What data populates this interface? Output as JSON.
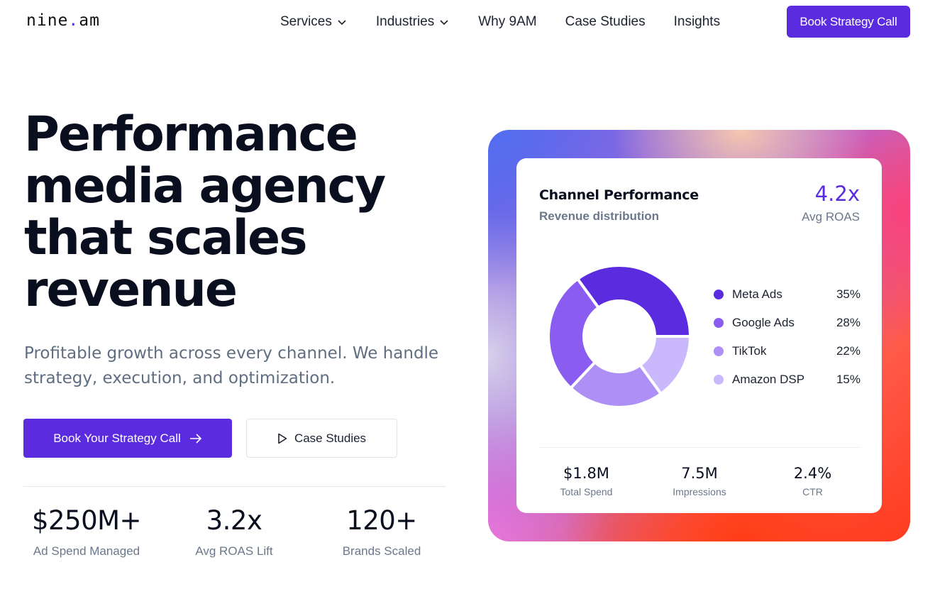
{
  "brand": {
    "name_a": "nine",
    "dot": ".",
    "name_b": "am"
  },
  "nav": {
    "items": [
      {
        "label": "Services",
        "has_dropdown": true
      },
      {
        "label": "Industries",
        "has_dropdown": true
      },
      {
        "label": "Why 9AM",
        "has_dropdown": false
      },
      {
        "label": "Case Studies",
        "has_dropdown": false
      },
      {
        "label": "Insights",
        "has_dropdown": false
      }
    ],
    "cta_label": "Book Strategy Call"
  },
  "hero": {
    "title_lines": [
      "Performance",
      "media agency",
      "that scales",
      "revenue"
    ],
    "subtitle_lines": [
      "Profitable growth across every channel. We handle",
      "strategy, execution, and optimization."
    ],
    "primary_cta": "Book Your Strategy Call",
    "secondary_cta": "Case Studies",
    "stats": [
      {
        "value": "$250M+",
        "label": "Ad Spend Managed"
      },
      {
        "value": "3.2x",
        "label": "Avg ROAS Lift"
      },
      {
        "value": "120+",
        "label": "Brands Scaled"
      }
    ]
  },
  "panel": {
    "title": "Channel Performance",
    "subtitle": "Revenue distribution",
    "roas_value": "4.2x",
    "roas_label": "Avg ROAS",
    "stats": [
      {
        "value": "$1.8M",
        "label": "Total Spend"
      },
      {
        "value": "7.5M",
        "label": "Impressions"
      },
      {
        "value": "2.4%",
        "label": "CTR"
      }
    ]
  },
  "chart_data": {
    "type": "pie",
    "categories": [
      "Meta Ads",
      "Google Ads",
      "TikTok",
      "Amazon DSP"
    ],
    "values": [
      35,
      28,
      22,
      15
    ],
    "value_labels": [
      "35%",
      "28%",
      "22%",
      "15%"
    ],
    "colors": [
      "#5b2be0",
      "#8b5cf0",
      "#ad8ff5",
      "#c9b8fb"
    ],
    "donut": true
  },
  "colors": {
    "accent": "#5b2be0"
  }
}
